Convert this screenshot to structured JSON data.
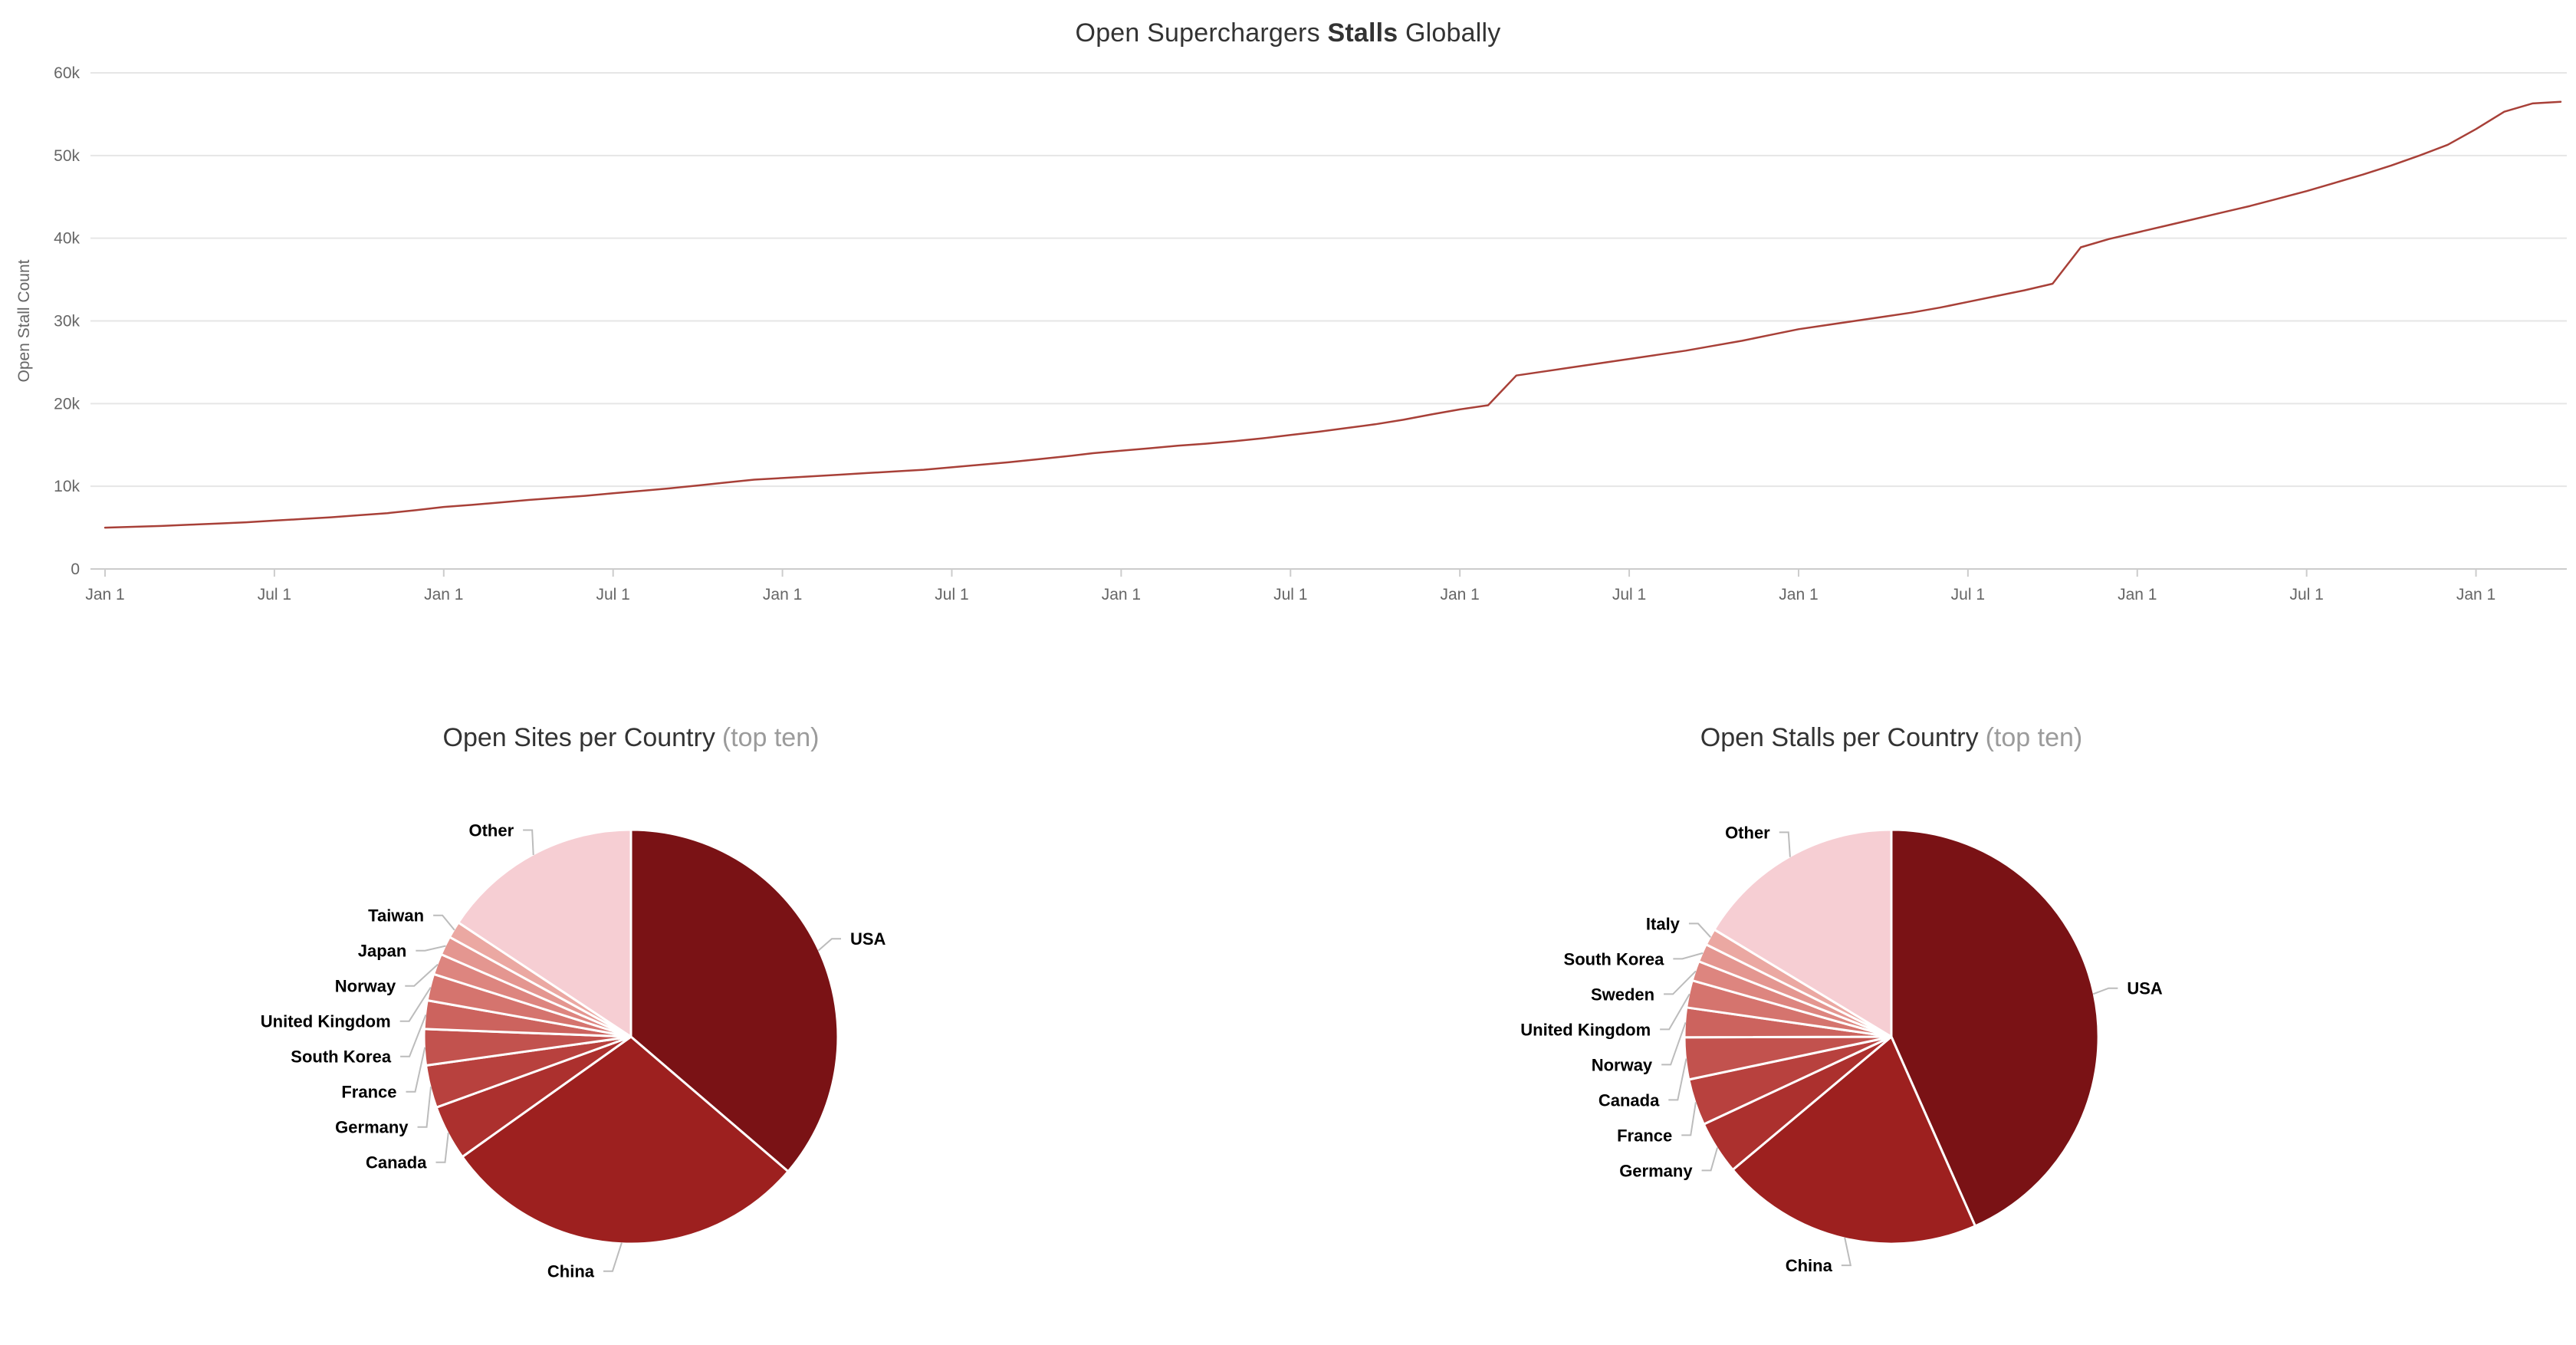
{
  "page_title": {
    "pre": "Open Superchargers ",
    "bold": "Stalls",
    "post": " Globally"
  },
  "colors": {
    "line": "#a84038",
    "axis": "#cccccc",
    "grid": "#e6e6e6",
    "tick_text": "#666666",
    "title_text": "#333333",
    "title_muted": "#9b9b9b",
    "connector": "#bcbcbc",
    "label_text": "#000000",
    "background": "#ffffff"
  },
  "chart_data": [
    {
      "type": "line",
      "title": "Open Superchargers Stalls Globally",
      "ylabel": "Open Stall Count",
      "xlabel": "",
      "ylim": [
        0,
        60000
      ],
      "ytick_step": 10000,
      "ytick_labels": [
        "0",
        "10k",
        "20k",
        "30k",
        "40k",
        "50k",
        "60k"
      ],
      "xtick_labels": [
        "Jan 1",
        "Jul 1",
        "Jan 1",
        "Jul 1",
        "Jan 1",
        "Jul 1",
        "Jan 1",
        "Jul 1",
        "Jan 1",
        "Jul 1",
        "Jan 1",
        "Jul 1",
        "Jan 1",
        "Jul 1",
        "Jan 1"
      ],
      "xtick_every_points": 6,
      "grid": true,
      "legend": false,
      "values": [
        5000,
        5100,
        5200,
        5350,
        5500,
        5650,
        5850,
        6050,
        6250,
        6500,
        6750,
        7100,
        7500,
        7750,
        8050,
        8350,
        8600,
        8850,
        9150,
        9450,
        9750,
        10100,
        10450,
        10800,
        11000,
        11200,
        11400,
        11600,
        11800,
        12000,
        12300,
        12600,
        12900,
        13250,
        13600,
        14000,
        14300,
        14600,
        14900,
        15150,
        15450,
        15800,
        16200,
        16600,
        17050,
        17500,
        18050,
        18700,
        19300,
        19800,
        23400,
        23900,
        24400,
        24900,
        25400,
        25900,
        26400,
        27000,
        27600,
        28300,
        29000,
        29500,
        30000,
        30500,
        31000,
        31600,
        32300,
        33000,
        33700,
        34500,
        38900,
        39900,
        40700,
        41500,
        42300,
        43100,
        43900,
        44800,
        45700,
        46700,
        47700,
        48800,
        50000,
        51300,
        53200,
        55300,
        56300,
        56500
      ]
    },
    {
      "type": "pie",
      "title": "Open Sites per Country",
      "title_suffix": "(top ten)",
      "legend_position": "none",
      "labels": [
        "USA",
        "China",
        "Canada",
        "Germany",
        "France",
        "South Korea",
        "United Kingdom",
        "Norway",
        "Japan",
        "Taiwan",
        "Other"
      ],
      "values": [
        2450,
        1950,
        290,
        225,
        190,
        150,
        140,
        110,
        100,
        88,
        1060
      ],
      "colors": [
        "#7a1215",
        "#9d201f",
        "#ac302e",
        "#b8413e",
        "#c2524e",
        "#cc635e",
        "#d5746e",
        "#dd857f",
        "#e49690",
        "#eba8a2",
        "#f6ced3"
      ]
    },
    {
      "type": "pie",
      "title": "Open Stalls per Country",
      "title_suffix": "(top ten)",
      "legend_position": "none",
      "labels": [
        "USA",
        "China",
        "Germany",
        "France",
        "Canada",
        "Norway",
        "United Kingdom",
        "Sweden",
        "South Korea",
        "Italy",
        "Other"
      ],
      "values": [
        24500,
        11600,
        2350,
        2050,
        1850,
        1300,
        1200,
        880,
        800,
        740,
        9230
      ],
      "colors": [
        "#7a1215",
        "#9d201f",
        "#ac302e",
        "#b8413e",
        "#c2524e",
        "#cc635e",
        "#d5746e",
        "#dd857f",
        "#e49690",
        "#eba8a2",
        "#f6ced3"
      ]
    }
  ]
}
